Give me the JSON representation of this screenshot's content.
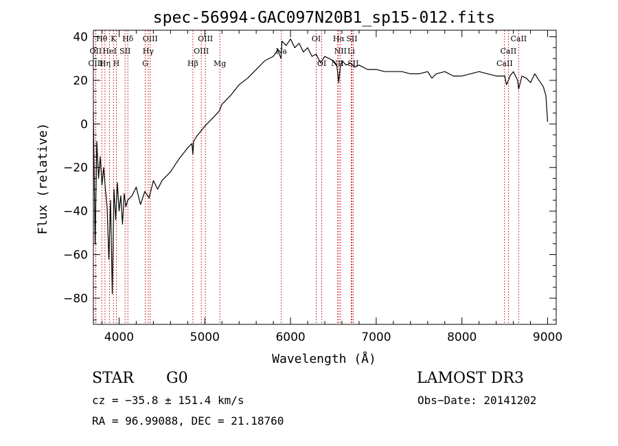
{
  "chart_data": {
    "type": "line",
    "title": "spec-56994-GAC097N20B1_sp15-012.fits",
    "xlabel": "Wavelength (Å)",
    "ylabel": "Flux (relative)",
    "xlim": [
      3700,
      9100
    ],
    "ylim": [
      -92,
      43
    ],
    "xticks": [
      4000,
      5000,
      6000,
      7000,
      8000,
      9000
    ],
    "xtick_labels": [
      "4000",
      "5000",
      "6000",
      "7000",
      "8000",
      "9000"
    ],
    "yticks": [
      40,
      20,
      0,
      -20,
      -40,
      -60,
      -80
    ],
    "ytick_labels": [
      "40",
      "20",
      "0",
      "−20",
      "−40",
      "−60",
      "−80"
    ],
    "grid": false,
    "line_color": "#000000",
    "marker_color": "#cc0000",
    "spectrum": {
      "x": [
        3700,
        3720,
        3740,
        3760,
        3780,
        3800,
        3820,
        3840,
        3860,
        3880,
        3900,
        3920,
        3940,
        3960,
        3980,
        4000,
        4020,
        4040,
        4060,
        4080,
        4100,
        4150,
        4200,
        4250,
        4300,
        4350,
        4400,
        4450,
        4500,
        4600,
        4700,
        4800,
        4850,
        4861,
        4870,
        4900,
        5000,
        5100,
        5170,
        5200,
        5300,
        5400,
        5500,
        5600,
        5700,
        5800,
        5850,
        5890,
        5900,
        5950,
        6000,
        6050,
        6100,
        6150,
        6200,
        6250,
        6300,
        6350,
        6400,
        6450,
        6500,
        6540,
        6563,
        6580,
        6600,
        6650,
        6700,
        6750,
        6800,
        6900,
        7000,
        7100,
        7200,
        7300,
        7400,
        7500,
        7600,
        7650,
        7700,
        7800,
        7900,
        8000,
        8100,
        8200,
        8300,
        8400,
        8500,
        8520,
        8542,
        8560,
        8600,
        8650,
        8662,
        8700,
        8750,
        8800,
        8850,
        8900,
        8950,
        8980,
        9000
      ],
      "y": [
        5,
        -55,
        -8,
        -25,
        -15,
        -28,
        -20,
        -30,
        -38,
        -62,
        -35,
        -78,
        -30,
        -44,
        -27,
        -40,
        -33,
        -46,
        -32,
        -38,
        -35,
        -33,
        -29,
        -37,
        -31,
        -34,
        -26,
        -30,
        -26,
        -22,
        -16,
        -11,
        -9,
        -14,
        -8,
        -6,
        -1,
        3,
        6,
        9,
        13,
        18,
        21,
        25,
        29,
        31,
        34,
        30,
        38,
        36,
        39,
        35,
        37,
        33,
        35,
        31,
        32,
        28,
        31,
        30,
        29,
        27,
        19,
        26,
        29,
        27,
        28,
        26,
        27,
        25,
        25,
        24,
        24,
        24,
        23,
        23,
        24,
        21,
        23,
        24,
        22,
        22,
        23,
        24,
        23,
        22,
        22,
        18,
        20,
        22,
        24,
        20,
        16,
        22,
        21,
        19,
        23,
        20,
        17,
        13,
        1
      ]
    },
    "line_markers": [
      {
        "label": "Hθ",
        "x": 3798,
        "row": 0
      },
      {
        "label": "K",
        "x": 3934,
        "row": 0
      },
      {
        "label": "Hδ",
        "x": 4102,
        "row": 0
      },
      {
        "label": "OIII",
        "x": 4363,
        "row": 0
      },
      {
        "label": "OIII",
        "x": 5007,
        "row": 0
      },
      {
        "label": "OI",
        "x": 6300,
        "row": 0
      },
      {
        "label": "Hα",
        "x": 6563,
        "row": 0
      },
      {
        "label": "SII",
        "x": 6716,
        "row": 0
      },
      {
        "label": "CaII",
        "x": 8662,
        "row": 0
      },
      {
        "label": "OII",
        "x": 3727,
        "row": 1
      },
      {
        "label": "HeI",
        "x": 3889,
        "row": 1
      },
      {
        "label": "SII",
        "x": 4070,
        "row": 1
      },
      {
        "label": "Hγ",
        "x": 4340,
        "row": 1
      },
      {
        "label": "OIII",
        "x": 4959,
        "row": 1
      },
      {
        "label": "Na",
        "x": 5893,
        "row": 1
      },
      {
        "label": "NII",
        "x": 6583,
        "row": 1
      },
      {
        "label": "Li",
        "x": 6708,
        "row": 1
      },
      {
        "label": "CaII",
        "x": 8542,
        "row": 1
      },
      {
        "label": "OIII",
        "x": 3727,
        "row": 2
      },
      {
        "label": "Hη",
        "x": 3835,
        "row": 2
      },
      {
        "label": "H",
        "x": 3968,
        "row": 2
      },
      {
        "label": "G",
        "x": 4305,
        "row": 2
      },
      {
        "label": "Hβ",
        "x": 4861,
        "row": 2
      },
      {
        "label": "Mg",
        "x": 5175,
        "row": 2
      },
      {
        "label": "OI",
        "x": 6364,
        "row": 2
      },
      {
        "label": "NII",
        "x": 6548,
        "row": 2
      },
      {
        "label": "SII",
        "x": 6731,
        "row": 2
      },
      {
        "label": "CaII",
        "x": 8498,
        "row": 2
      }
    ]
  },
  "info": {
    "class_label": "STAR",
    "subclass_label": "G0",
    "survey": "LAMOST DR3",
    "cz_text": "cz = −35.8 ± 151.4 km/s",
    "obs_date_text": "Obs−Date: 20141202",
    "coords_text": "RA =  96.99088, DEC =  21.18760"
  }
}
